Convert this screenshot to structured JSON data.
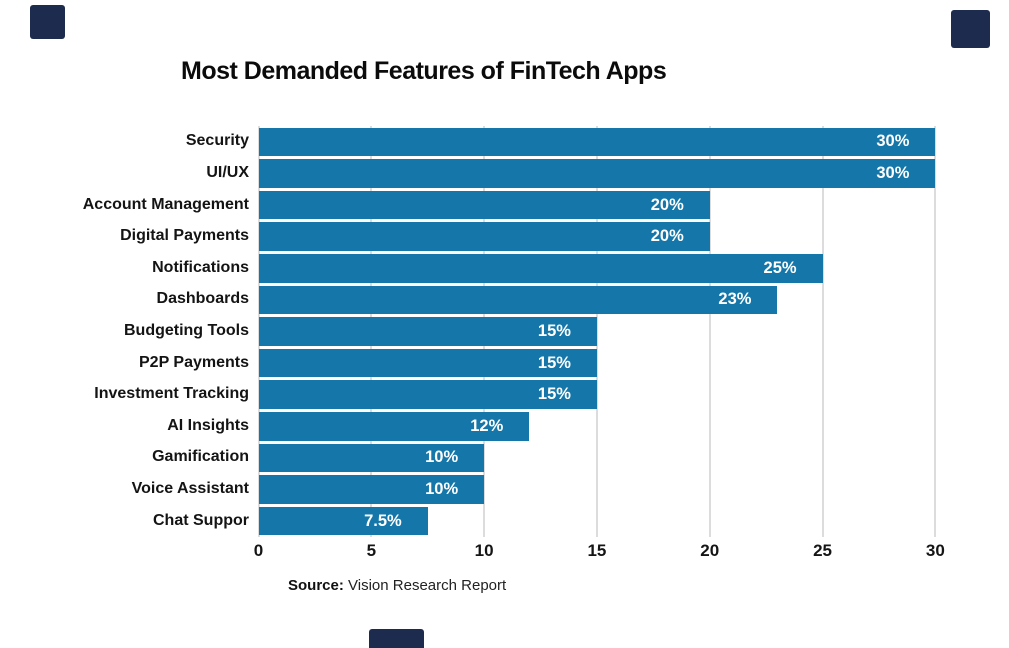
{
  "title": "Most Demanded Features of FinTech Apps",
  "source": {
    "label": "Source:",
    "text": " Vision Research Report"
  },
  "decor": {
    "color": "#1d2c4e"
  },
  "chart_data": {
    "type": "bar",
    "orientation": "horizontal",
    "title": "Most Demanded Features of FinTech Apps",
    "categories": [
      "Security",
      "UI/UX",
      "Account Management",
      "Digital Payments",
      "Notifications",
      "Dashboards",
      "Budgeting Tools",
      "P2P Payments",
      "Investment Tracking",
      "AI Insights",
      "Gamification",
      "Voice Assistant",
      "Chat Suppor"
    ],
    "values": [
      30,
      30,
      20,
      20,
      25,
      23,
      15,
      15,
      15,
      12,
      10,
      10,
      7.5
    ],
    "value_labels": [
      "30%",
      "30%",
      "20%",
      "20%",
      "25%",
      "23%",
      "15%",
      "15%",
      "15%",
      "12%",
      "10%",
      "10%",
      "7.5%"
    ],
    "xlabel": "",
    "ylabel": "",
    "xlim": [
      0,
      30
    ],
    "xticks": [
      "0",
      "5",
      "10",
      "15",
      "20",
      "25",
      "30"
    ],
    "grid": true,
    "legend": false,
    "bar_color": "#1577a9",
    "grid_color": "#dcdcdc",
    "value_label_color": "#ffffff"
  }
}
